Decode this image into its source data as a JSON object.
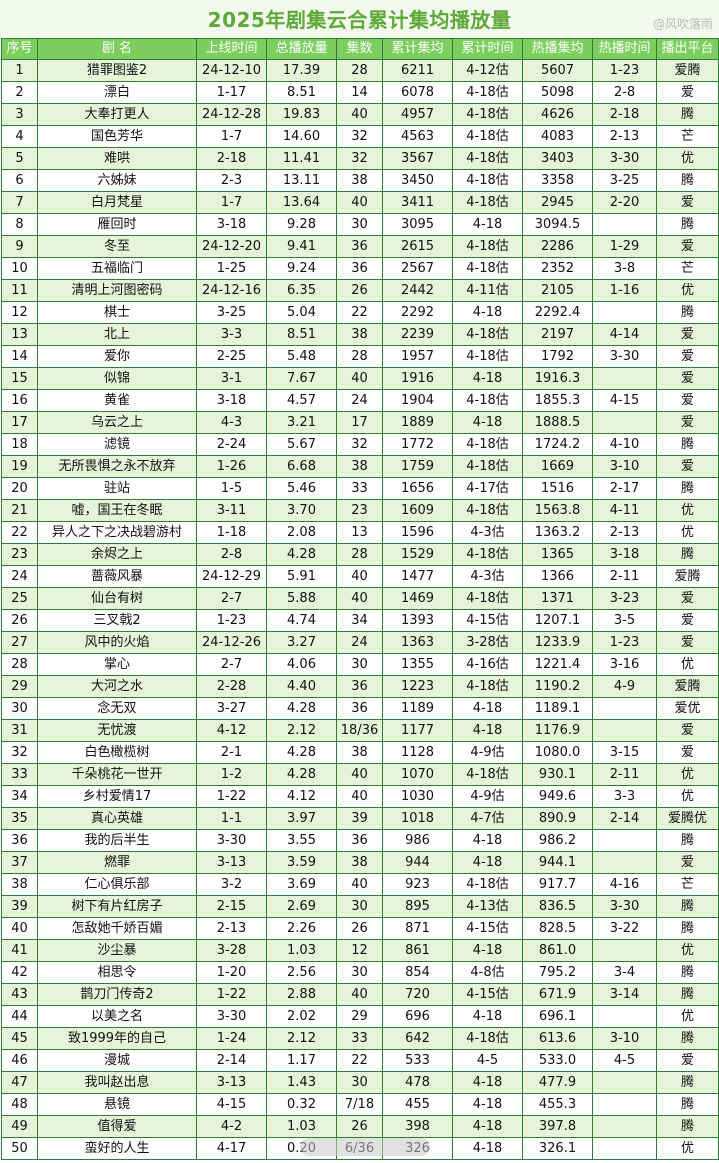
{
  "title": "2025年剧集云合累计集均播放量",
  "watermark": "@风吹落雨",
  "table": {
    "headers": [
      "序号",
      "剧 名",
      "上线时间",
      "总播放量",
      "集数",
      "累计集均",
      "累计时间",
      "热播集均",
      "热播时间",
      "播出平台"
    ],
    "rows": [
      [
        "1",
        "猎罪图鉴2",
        "24-12-10",
        "17.39",
        "28",
        "6211",
        "4-12估",
        "5607",
        "1-23",
        "爱腾"
      ],
      [
        "2",
        "漂白",
        "1-17",
        "8.51",
        "14",
        "6078",
        "4-18估",
        "5098",
        "2-8",
        "爱"
      ],
      [
        "3",
        "大奉打更人",
        "24-12-28",
        "19.83",
        "40",
        "4957",
        "4-18估",
        "4626",
        "2-18",
        "腾"
      ],
      [
        "4",
        "国色芳华",
        "1-7",
        "14.60",
        "32",
        "4563",
        "4-18估",
        "4083",
        "2-13",
        "芒"
      ],
      [
        "5",
        "难哄",
        "2-18",
        "11.41",
        "32",
        "3567",
        "4-18估",
        "3403",
        "3-30",
        "优"
      ],
      [
        "6",
        "六姊妹",
        "2-3",
        "13.11",
        "38",
        "3450",
        "4-18估",
        "3358",
        "3-25",
        "腾"
      ],
      [
        "7",
        "白月梵星",
        "1-7",
        "13.64",
        "40",
        "3411",
        "4-18估",
        "2945",
        "2-20",
        "爱"
      ],
      [
        "8",
        "雁回时",
        "3-18",
        "9.28",
        "30",
        "3095",
        "4-18",
        "3094.5",
        "",
        "腾"
      ],
      [
        "9",
        "冬至",
        "24-12-20",
        "9.41",
        "36",
        "2615",
        "4-18估",
        "2286",
        "1-29",
        "爱"
      ],
      [
        "10",
        "五福临门",
        "1-25",
        "9.24",
        "36",
        "2567",
        "4-18估",
        "2352",
        "3-8",
        "芒"
      ],
      [
        "11",
        "清明上河图密码",
        "24-12-16",
        "6.35",
        "26",
        "2442",
        "4-11估",
        "2105",
        "1-16",
        "优"
      ],
      [
        "12",
        "棋士",
        "3-25",
        "5.04",
        "22",
        "2292",
        "4-18",
        "2292.4",
        "",
        "腾"
      ],
      [
        "13",
        "北上",
        "3-3",
        "8.51",
        "38",
        "2239",
        "4-18估",
        "2197",
        "4-14",
        "爱"
      ],
      [
        "14",
        "爱你",
        "2-25",
        "5.48",
        "28",
        "1957",
        "4-18估",
        "1792",
        "3-30",
        "爱"
      ],
      [
        "15",
        "似锦",
        "3-1",
        "7.67",
        "40",
        "1916",
        "4-18",
        "1916.3",
        "",
        "爱"
      ],
      [
        "16",
        "黄雀",
        "3-18",
        "4.57",
        "24",
        "1904",
        "4-18估",
        "1855.3",
        "4-15",
        "爱"
      ],
      [
        "17",
        "乌云之上",
        "4-3",
        "3.21",
        "17",
        "1889",
        "4-18",
        "1888.5",
        "",
        "爱"
      ],
      [
        "18",
        "滤镜",
        "2-24",
        "5.67",
        "32",
        "1772",
        "4-18估",
        "1724.2",
        "4-10",
        "腾"
      ],
      [
        "19",
        "无所畏惧之永不放弃",
        "1-26",
        "6.68",
        "38",
        "1759",
        "4-18估",
        "1669",
        "3-10",
        "爱"
      ],
      [
        "20",
        "驻站",
        "1-5",
        "5.46",
        "33",
        "1656",
        "4-17估",
        "1516",
        "2-17",
        "腾"
      ],
      [
        "21",
        "嘘，国王在冬眠",
        "3-11",
        "3.70",
        "23",
        "1609",
        "4-18估",
        "1563.8",
        "4-11",
        "优"
      ],
      [
        "22",
        "异人之下之决战碧游村",
        "1-18",
        "2.08",
        "13",
        "1596",
        "4-3估",
        "1363.2",
        "2-13",
        "优"
      ],
      [
        "23",
        "余烬之上",
        "2-8",
        "4.28",
        "28",
        "1529",
        "4-18估",
        "1365",
        "3-18",
        "腾"
      ],
      [
        "24",
        "蔷薇风暴",
        "24-12-29",
        "5.91",
        "40",
        "1477",
        "4-3估",
        "1366",
        "2-11",
        "爱腾"
      ],
      [
        "25",
        "仙台有树",
        "2-7",
        "5.88",
        "40",
        "1469",
        "4-18估",
        "1371",
        "3-23",
        "爱"
      ],
      [
        "26",
        "三叉戟2",
        "1-23",
        "4.74",
        "34",
        "1393",
        "4-15估",
        "1207.1",
        "3-5",
        "爱"
      ],
      [
        "27",
        "风中的火焰",
        "24-12-26",
        "3.27",
        "24",
        "1363",
        "3-28估",
        "1233.9",
        "1-23",
        "爱"
      ],
      [
        "28",
        "掌心",
        "2-7",
        "4.06",
        "30",
        "1355",
        "4-16估",
        "1221.4",
        "3-16",
        "优"
      ],
      [
        "29",
        "大河之水",
        "2-28",
        "4.40",
        "36",
        "1223",
        "4-18估",
        "1190.2",
        "4-9",
        "爱腾"
      ],
      [
        "30",
        "念无双",
        "3-27",
        "4.28",
        "36",
        "1189",
        "4-18",
        "1189.1",
        "",
        "爱优"
      ],
      [
        "31",
        "无忧渡",
        "4-12",
        "2.12",
        "18/36",
        "1177",
        "4-18",
        "1176.9",
        "",
        "爱"
      ],
      [
        "32",
        "白色橄榄树",
        "2-1",
        "4.28",
        "38",
        "1128",
        "4-9估",
        "1080.0",
        "3-15",
        "爱"
      ],
      [
        "33",
        "千朵桃花一世开",
        "1-2",
        "4.28",
        "40",
        "1070",
        "4-18估",
        "930.1",
        "2-11",
        "优"
      ],
      [
        "34",
        "乡村爱情17",
        "1-22",
        "4.12",
        "40",
        "1030",
        "4-9估",
        "949.6",
        "3-3",
        "优"
      ],
      [
        "35",
        "真心英雄",
        "1-1",
        "3.97",
        "39",
        "1018",
        "4-7估",
        "890.9",
        "2-14",
        "爱腾优"
      ],
      [
        "36",
        "我的后半生",
        "3-30",
        "3.55",
        "36",
        "986",
        "4-18",
        "986.2",
        "",
        "腾"
      ],
      [
        "37",
        "燃罪",
        "3-13",
        "3.59",
        "38",
        "944",
        "4-18",
        "944.1",
        "",
        "爱"
      ],
      [
        "38",
        "仁心俱乐部",
        "3-2",
        "3.69",
        "40",
        "923",
        "4-18估",
        "917.7",
        "4-16",
        "芒"
      ],
      [
        "39",
        "树下有片红房子",
        "2-15",
        "2.69",
        "30",
        "895",
        "4-13估",
        "836.5",
        "3-30",
        "腾"
      ],
      [
        "40",
        "怎敌她千娇百媚",
        "2-13",
        "2.26",
        "26",
        "871",
        "4-15估",
        "828.5",
        "3-22",
        "腾"
      ],
      [
        "41",
        "沙尘暴",
        "3-28",
        "1.03",
        "12",
        "861",
        "4-18",
        "861.0",
        "",
        "优"
      ],
      [
        "42",
        "相思令",
        "1-20",
        "2.56",
        "30",
        "854",
        "4-8估",
        "795.2",
        "3-4",
        "腾"
      ],
      [
        "43",
        "鹊刀门传奇2",
        "1-22",
        "2.88",
        "40",
        "720",
        "4-15估",
        "671.9",
        "3-14",
        "腾"
      ],
      [
        "44",
        "以美之名",
        "3-30",
        "2.02",
        "29",
        "696",
        "4-18",
        "696.1",
        "",
        "优"
      ],
      [
        "45",
        "致1999年的自己",
        "1-24",
        "2.12",
        "33",
        "642",
        "4-18估",
        "613.6",
        "3-10",
        "腾"
      ],
      [
        "46",
        "漫城",
        "2-14",
        "1.17",
        "22",
        "533",
        "4-5",
        "533.0",
        "4-5",
        "爱"
      ],
      [
        "47",
        "我叫赵出息",
        "3-13",
        "1.43",
        "30",
        "478",
        "4-18",
        "477.9",
        "",
        "腾"
      ],
      [
        "48",
        "悬镜",
        "4-15",
        "0.32",
        "7/18",
        "455",
        "4-18",
        "455.3",
        "",
        "腾"
      ],
      [
        "49",
        "值得爱",
        "4-2",
        "1.03",
        "26",
        "398",
        "4-18",
        "397.8",
        "",
        "腾"
      ],
      [
        "50",
        "蛮好的人生",
        "4-17",
        "0.20",
        "6/36",
        "326",
        "4-18",
        "326.1",
        "",
        "优"
      ]
    ]
  }
}
